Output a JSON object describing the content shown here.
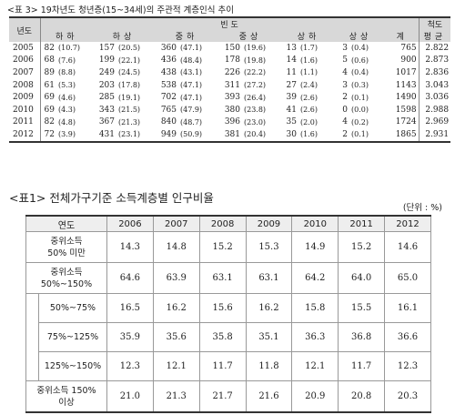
{
  "table1": {
    "caption": "<표 3> 19차년도 청년층(15~34세)의 주관적 계층인식 추이",
    "header_year": "년도",
    "header_freq": "빈 도",
    "header_scale": "척도",
    "header_mean": "평균",
    "categories": [
      "하하",
      "하상",
      "중하",
      "중상",
      "상하",
      "상상",
      "계"
    ],
    "rows": [
      {
        "year": "2005",
        "v": [
          [
            "82",
            "(10.7)"
          ],
          [
            "157",
            "(20.5)"
          ],
          [
            "360",
            "(47.1)"
          ],
          [
            "150",
            "(19.6)"
          ],
          [
            "13",
            "(1.7)"
          ],
          [
            "3",
            "(0.4)"
          ]
        ],
        "total": "765",
        "mean": "2.822"
      },
      {
        "year": "2006",
        "v": [
          [
            "68",
            "(7.6)"
          ],
          [
            "199",
            "(22.1)"
          ],
          [
            "436",
            "(48.4)"
          ],
          [
            "178",
            "(19.8)"
          ],
          [
            "14",
            "(1.6)"
          ],
          [
            "5",
            "(0.6)"
          ]
        ],
        "total": "900",
        "mean": "2.873"
      },
      {
        "year": "2007",
        "v": [
          [
            "89",
            "(8.8)"
          ],
          [
            "249",
            "(24.5)"
          ],
          [
            "438",
            "(43.1)"
          ],
          [
            "226",
            "(22.2)"
          ],
          [
            "11",
            "(1.1)"
          ],
          [
            "4",
            "(0.4)"
          ]
        ],
        "total": "1017",
        "mean": "2.836"
      },
      {
        "year": "2008",
        "v": [
          [
            "61",
            "(5.3)"
          ],
          [
            "203",
            "(17.8)"
          ],
          [
            "538",
            "(47.1)"
          ],
          [
            "311",
            "(27.2)"
          ],
          [
            "27",
            "(2.4)"
          ],
          [
            "3",
            "(0.3)"
          ]
        ],
        "total": "1143",
        "mean": "3.043"
      },
      {
        "year": "2009",
        "v": [
          [
            "69",
            "(4.6)"
          ],
          [
            "285",
            "(19.1)"
          ],
          [
            "702",
            "(47.1)"
          ],
          [
            "393",
            "(26.4)"
          ],
          [
            "39",
            "(2.6)"
          ],
          [
            "2",
            "(0.1)"
          ]
        ],
        "total": "1490",
        "mean": "3.036"
      },
      {
        "year": "2010",
        "v": [
          [
            "69",
            "(4.3)"
          ],
          [
            "343",
            "(21.5)"
          ],
          [
            "765",
            "(47.9)"
          ],
          [
            "380",
            "(23.8)"
          ],
          [
            "41",
            "(2.6)"
          ],
          [
            "0",
            "(0.0)"
          ]
        ],
        "total": "1598",
        "mean": "2.988"
      },
      {
        "year": "2011",
        "v": [
          [
            "82",
            "(4.8)"
          ],
          [
            "367",
            "(21.3)"
          ],
          [
            "840",
            "(48.7)"
          ],
          [
            "396",
            "(23.0)"
          ],
          [
            "35",
            "(2.0)"
          ],
          [
            "4",
            "(0.2)"
          ]
        ],
        "total": "1724",
        "mean": "2.969"
      },
      {
        "year": "2012",
        "v": [
          [
            "72",
            "(3.9)"
          ],
          [
            "431",
            "(23.1)"
          ],
          [
            "949",
            "(50.9)"
          ],
          [
            "381",
            "(20.4)"
          ],
          [
            "30",
            "(1.6)"
          ],
          [
            "2",
            "(0.1)"
          ]
        ],
        "total": "1865",
        "mean": "2.931"
      }
    ]
  },
  "table2": {
    "caption": "<표1> 전체가구기준 소득계층별 인구비율",
    "unit": "(단위 : %)",
    "header_label": "연도",
    "years": [
      "2006",
      "2007",
      "2008",
      "2009",
      "2010",
      "2011",
      "2012"
    ],
    "rows": [
      {
        "label": [
          "중위소득",
          "50% 미만"
        ],
        "values": [
          "14.3",
          "14.8",
          "15.2",
          "15.3",
          "14.9",
          "15.2",
          "14.6"
        ]
      },
      {
        "label": [
          "중위소득",
          "50%~150%"
        ],
        "values": [
          "64.6",
          "63.9",
          "63.1",
          "63.1",
          "64.2",
          "64.0",
          "65.0"
        ]
      },
      {
        "label": [
          "50%~75%"
        ],
        "values": [
          "16.5",
          "16.2",
          "15.6",
          "16.2",
          "15.8",
          "15.5",
          "16.1"
        ]
      },
      {
        "label": [
          "75%~125%"
        ],
        "values": [
          "35.9",
          "35.6",
          "35.8",
          "35.1",
          "36.3",
          "36.8",
          "36.6"
        ]
      },
      {
        "label": [
          "125%~150%"
        ],
        "values": [
          "12.3",
          "12.1",
          "11.7",
          "11.8",
          "12.1",
          "11.7",
          "12.3"
        ]
      },
      {
        "label": [
          "중위소득 150%",
          "이상"
        ],
        "values": [
          "21.0",
          "21.3",
          "21.7",
          "21.6",
          "20.9",
          "20.8",
          "20.3"
        ]
      }
    ]
  }
}
